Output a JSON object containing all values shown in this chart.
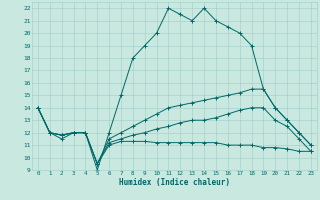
{
  "xlabel": "Humidex (Indice chaleur)",
  "bg_color": "#c8e8e0",
  "grid_color": "#a0ccc8",
  "line_color": "#006868",
  "xlim": [
    -0.5,
    23.5
  ],
  "ylim": [
    9,
    22.5
  ],
  "yticks": [
    9,
    10,
    11,
    12,
    13,
    14,
    15,
    16,
    17,
    18,
    19,
    20,
    21,
    22
  ],
  "xticks": [
    0,
    1,
    2,
    3,
    4,
    5,
    6,
    7,
    8,
    9,
    10,
    11,
    12,
    13,
    14,
    15,
    16,
    17,
    18,
    19,
    20,
    21,
    22,
    23
  ],
  "line1_x": [
    0,
    1,
    2,
    3,
    4,
    5,
    6,
    7,
    8,
    9,
    10,
    11,
    12,
    13,
    14,
    15,
    16,
    17,
    18,
    19,
    20,
    21,
    22,
    23
  ],
  "line1_y": [
    14,
    12,
    11.5,
    12,
    12,
    9,
    12,
    15,
    18,
    19,
    20,
    22,
    21.5,
    21,
    22,
    21,
    20.5,
    20,
    19,
    15.5,
    14,
    13,
    12,
    11
  ],
  "line2_x": [
    0,
    1,
    2,
    3,
    4,
    5,
    6,
    7,
    8,
    9,
    10,
    11,
    12,
    13,
    14,
    15,
    16,
    17,
    18,
    19,
    20,
    21,
    22,
    23
  ],
  "line2_y": [
    14,
    12,
    11.8,
    12,
    12,
    9.5,
    11.5,
    12,
    12.5,
    13,
    13.5,
    14,
    14.2,
    14.4,
    14.6,
    14.8,
    15,
    15.2,
    15.5,
    15.5,
    14,
    13,
    12,
    11
  ],
  "line3_x": [
    0,
    1,
    2,
    3,
    4,
    5,
    6,
    7,
    8,
    9,
    10,
    11,
    12,
    13,
    14,
    15,
    16,
    17,
    18,
    19,
    20,
    21,
    22,
    23
  ],
  "line3_y": [
    14,
    12,
    11.8,
    12,
    12,
    9.5,
    11.2,
    11.5,
    11.8,
    12,
    12.3,
    12.5,
    12.8,
    13,
    13,
    13.2,
    13.5,
    13.8,
    14,
    14,
    13,
    12.5,
    11.5,
    10.5
  ],
  "line4_x": [
    0,
    1,
    2,
    3,
    4,
    5,
    6,
    7,
    8,
    9,
    10,
    11,
    12,
    13,
    14,
    15,
    16,
    17,
    18,
    19,
    20,
    21,
    22,
    23
  ],
  "line4_y": [
    14,
    12,
    11.8,
    12,
    12,
    9.5,
    11,
    11.3,
    11.3,
    11.3,
    11.2,
    11.2,
    11.2,
    11.2,
    11.2,
    11.2,
    11,
    11,
    11,
    10.8,
    10.8,
    10.7,
    10.5,
    10.5
  ]
}
